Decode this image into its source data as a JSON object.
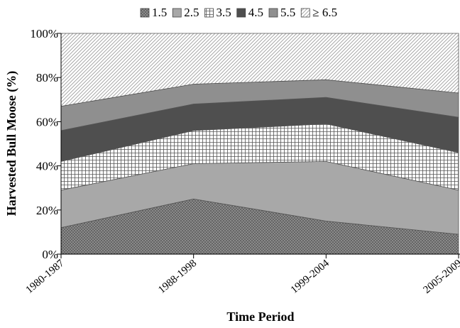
{
  "chart_data": {
    "type": "area",
    "stacked": true,
    "percent": true,
    "categories": [
      "1980-1987",
      "1988-1998",
      "1999-2004",
      "2005-2009"
    ],
    "series": [
      {
        "name": "1.5",
        "values": [
          12,
          25,
          15,
          9
        ],
        "color": "#888888",
        "pattern": "dots"
      },
      {
        "name": "2.5",
        "values": [
          17,
          16,
          27,
          20
        ],
        "color": "#a8a8a8",
        "pattern": "solid"
      },
      {
        "name": "3.5",
        "values": [
          13,
          15,
          17,
          17
        ],
        "color": "#ffffff",
        "pattern": "grid"
      },
      {
        "name": "4.5",
        "values": [
          14,
          12,
          12,
          16
        ],
        "color": "#4f4f4f",
        "pattern": "solid"
      },
      {
        "name": "5.5",
        "values": [
          11,
          9,
          8,
          11
        ],
        "color": "#8f8f8f",
        "pattern": "solid"
      },
      {
        "name": "≥ 6.5",
        "values": [
          33,
          23,
          21,
          27
        ],
        "color": "#dddddd",
        "pattern": "diagonal"
      }
    ],
    "xlabel": "Time Period",
    "ylabel": "Harvested Bull Moose (%)",
    "yticks": [
      "0%",
      "20%",
      "40%",
      "60%",
      "80%",
      "100%"
    ],
    "ylim": [
      0,
      100
    ],
    "legend": "top"
  }
}
